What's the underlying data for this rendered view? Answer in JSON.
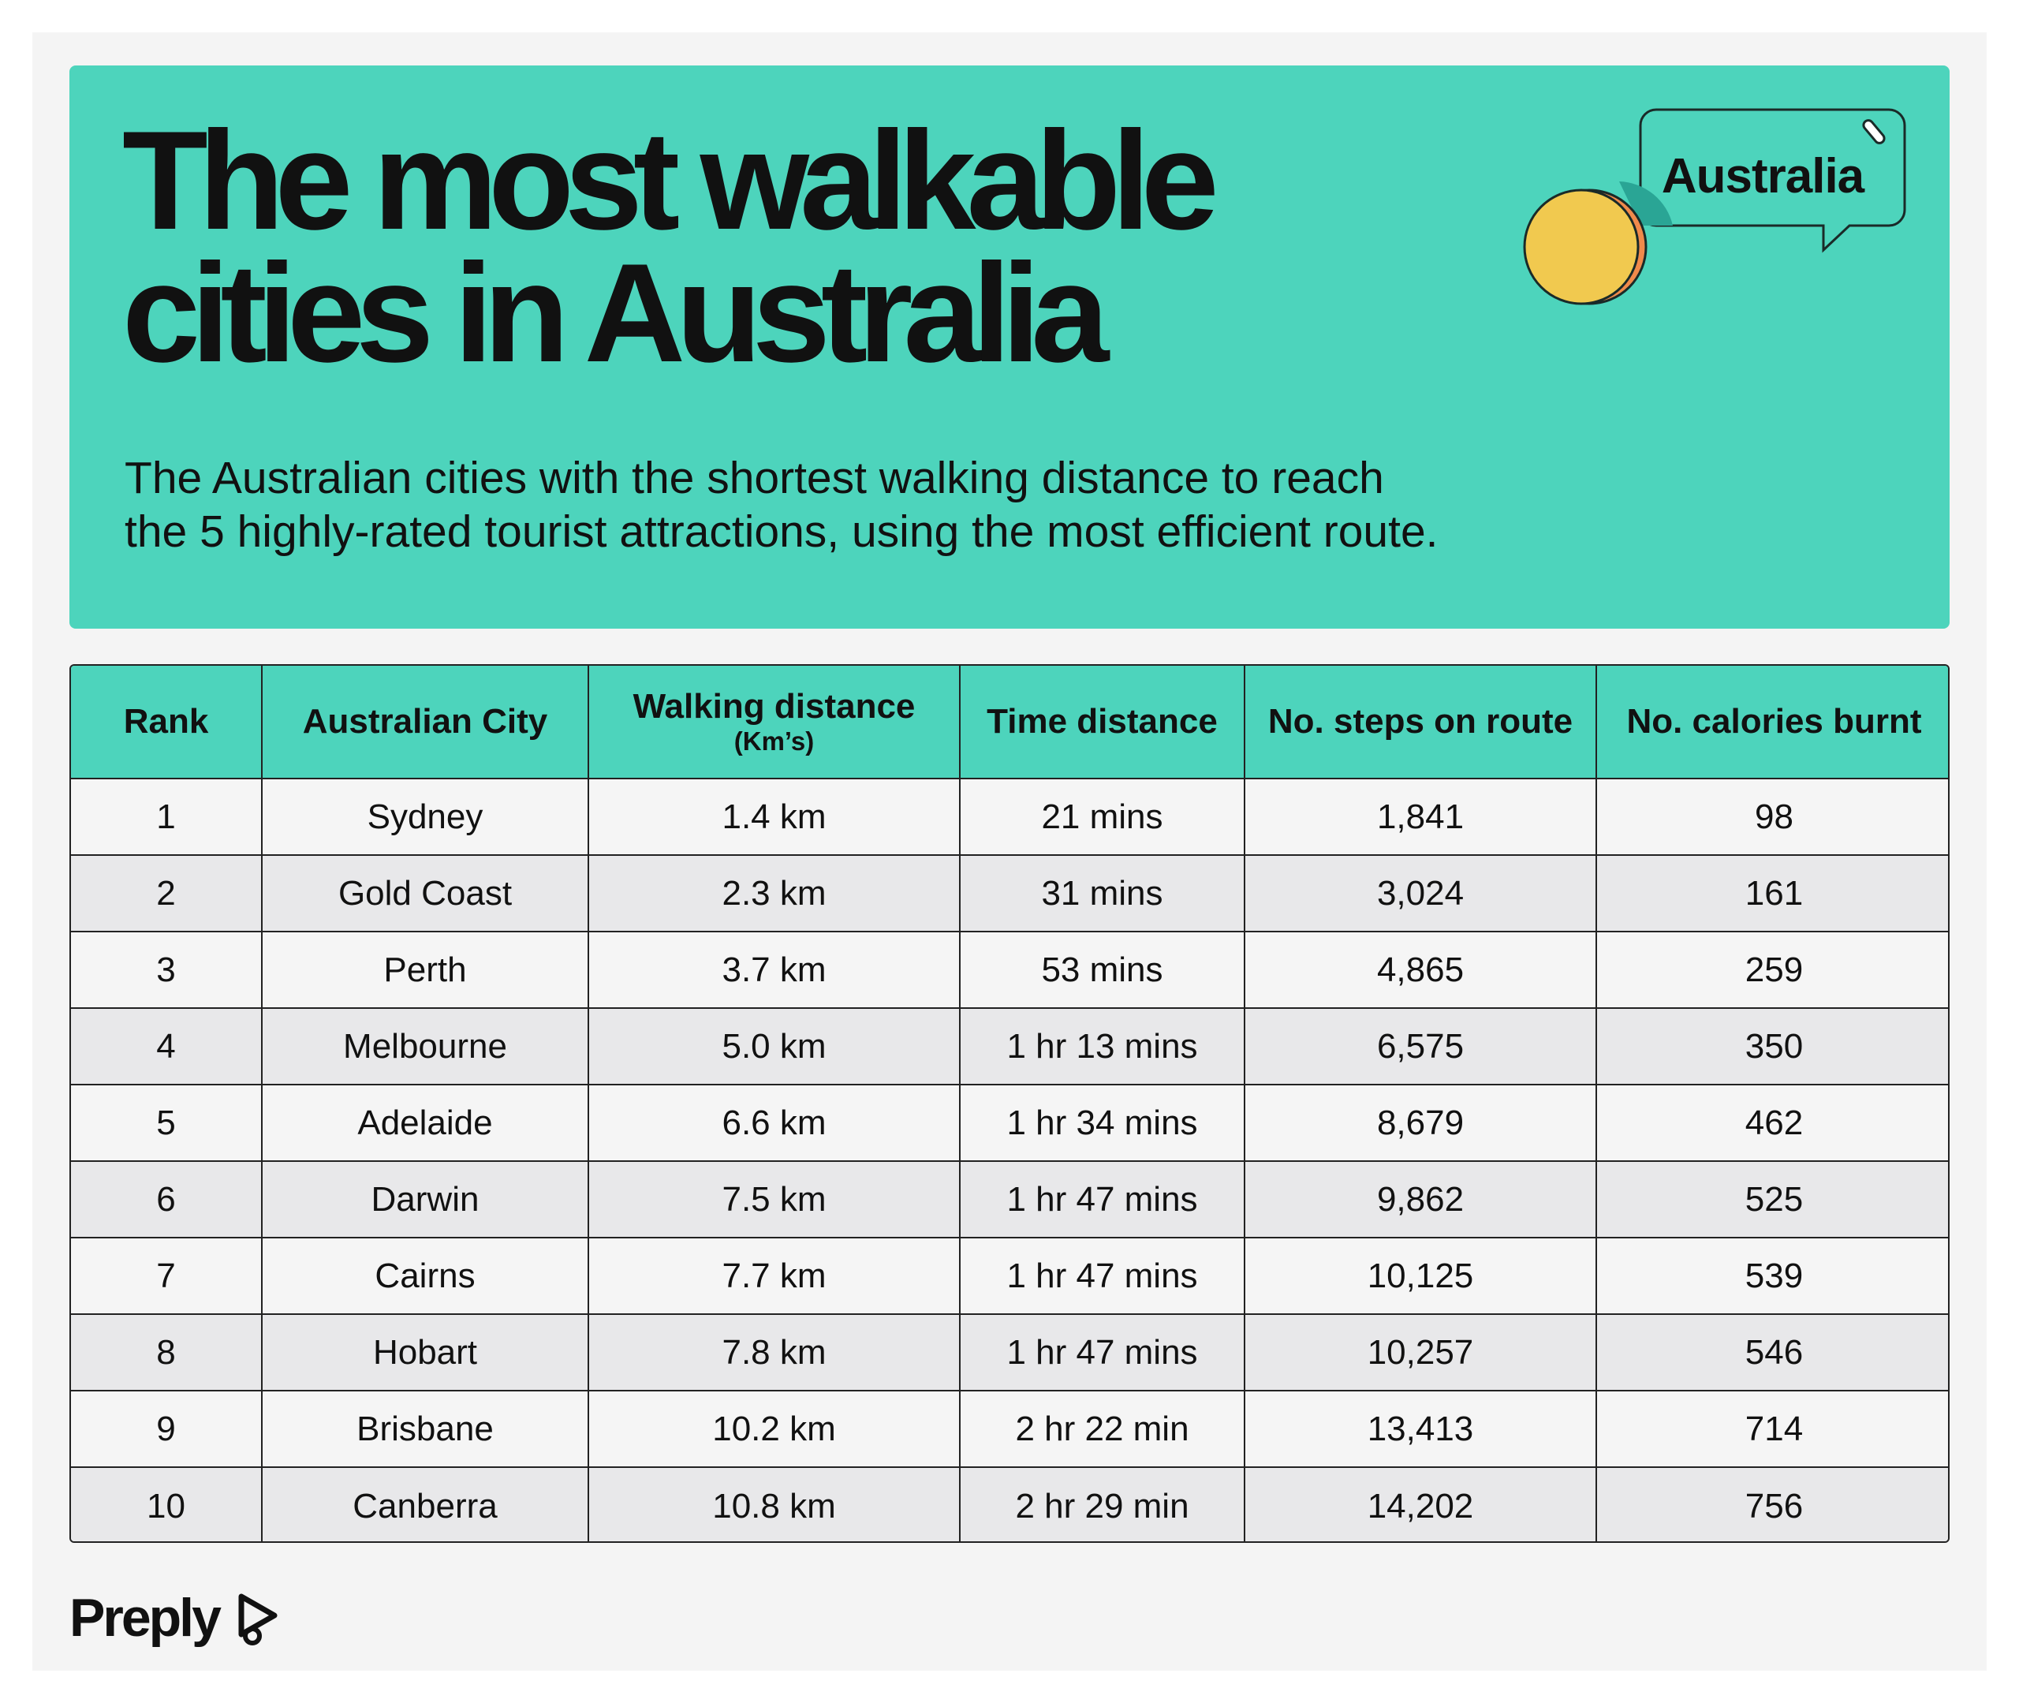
{
  "header": {
    "title_lines": [
      "The most walkable",
      "cities in Australia"
    ],
    "subtitle_lines": [
      "The Australian cities with the shortest walking distance to reach",
      "the 5 highly-rated tourist attractions, using the most efficient route."
    ],
    "badge": "Australia"
  },
  "table": {
    "columns": [
      {
        "label": "Rank"
      },
      {
        "label": "Australian City"
      },
      {
        "label": "Walking distance",
        "unit": "(Km’s)"
      },
      {
        "label": "Time distance"
      },
      {
        "label": "No. steps on route"
      },
      {
        "label": "No. calories burnt"
      }
    ],
    "rows": [
      [
        "1",
        "Sydney",
        "1.4 km",
        "21 mins",
        "1,841",
        "98"
      ],
      [
        "2",
        "Gold Coast",
        "2.3 km",
        "31 mins",
        "3,024",
        "161"
      ],
      [
        "3",
        "Perth",
        "3.7 km",
        "53 mins",
        "4,865",
        "259"
      ],
      [
        "4",
        "Melbourne",
        "5.0 km",
        "1 hr 13 mins",
        "6,575",
        "350"
      ],
      [
        "5",
        "Adelaide",
        "6.6 km",
        "1 hr 34 mins",
        "8,679",
        "462"
      ],
      [
        "6",
        "Darwin",
        "7.5 km",
        "1 hr 47 mins",
        "9,862",
        "525"
      ],
      [
        "7",
        "Cairns",
        "7.7 km",
        "1 hr 47 mins",
        "10,125",
        "539"
      ],
      [
        "8",
        "Hobart",
        "7.8 km",
        "1 hr 47 mins",
        "10,257",
        "546"
      ],
      [
        "9",
        "Brisbane",
        "10.2 km",
        "2 hr 22 min",
        "13,413",
        "714"
      ],
      [
        "10",
        "Canberra",
        "10.8 km",
        "2 hr 29 min",
        "14,202",
        "756"
      ]
    ]
  },
  "footer": {
    "logo": "Preply"
  }
}
